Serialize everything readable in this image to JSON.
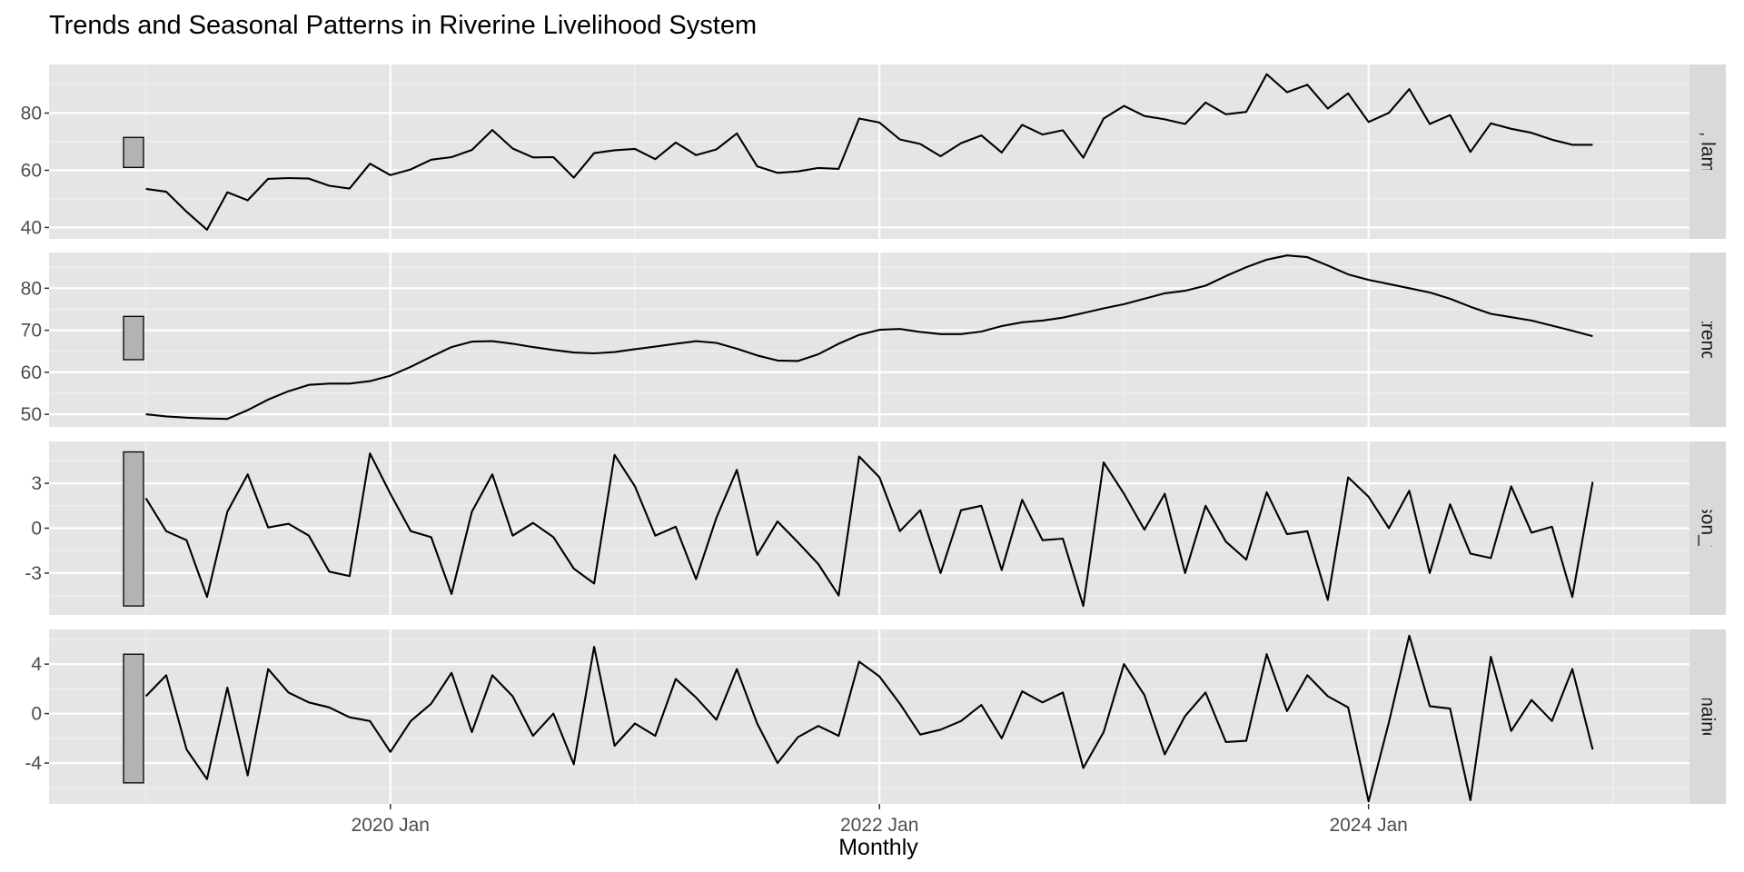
{
  "chart_data": {
    "type": "line",
    "title": "Trends and Seasonal Patterns in Riverine Livelihood System",
    "xlabel": "Monthly",
    "x_start": "2019 Jan",
    "x_end": "2024 Dec",
    "x_frequency": "monthly",
    "x_ticks": [
      "2020 Jan",
      "2022 Jan",
      "2024 Jan"
    ],
    "x_tick_months": [
      12,
      36,
      60
    ],
    "x_minor_tick_months": [
      0,
      24,
      48,
      72
    ],
    "x_range_months": [
      -4.75,
      75.75
    ],
    "grid": true,
    "panel_background": "#e5e5e5",
    "strip_background": "#d9d9d9",
    "line_color": "#000000",
    "scale_bar_fill": "#b3b3b3",
    "panels": [
      {
        "strip": "issions, lambda = l",
        "ylim": [
          36,
          97
        ],
        "yticks": [
          40,
          60,
          80
        ],
        "scale_bar": [
          61,
          71.5
        ],
        "values": [
          53.5,
          52.5,
          45.5,
          39.2,
          52.3,
          49.5,
          57,
          57.3,
          57.1,
          54.6,
          53.6,
          62.3,
          58.3,
          60.3,
          63.7,
          64.6,
          67.1,
          74.1,
          67.6,
          64.5,
          64.6,
          57.4,
          66,
          67,
          67.5,
          63.9,
          69.7,
          65.3,
          67.3,
          72.9,
          61.4,
          59.1,
          59.6,
          60.8,
          60.5,
          78.1,
          76.7,
          70.8,
          69.2,
          64.9,
          69.5,
          72.2,
          66.2,
          75.9,
          72.5,
          74,
          64.4,
          78.1,
          82.5,
          79,
          77.8,
          76.2,
          83.7,
          79.6,
          80.4,
          93.6,
          87.3,
          89.9,
          81.6,
          86.9,
          76.9,
          80.1,
          88.4,
          76.2,
          79.3,
          66.4,
          76.4,
          74.5,
          73.1,
          70.7,
          68.9,
          68.9
        ]
      },
      {
        "strip": "trend",
        "ylim": [
          47,
          88.5
        ],
        "yticks": [
          50,
          60,
          70,
          80
        ],
        "scale_bar": [
          63,
          73.3
        ],
        "values": [
          50,
          49.5,
          49.2,
          49,
          48.9,
          51,
          53.5,
          55.5,
          57,
          57.3,
          57.3,
          57.9,
          59.2,
          61.3,
          63.7,
          66,
          67.3,
          67.4,
          66.8,
          66,
          65.3,
          64.7,
          64.5,
          64.8,
          65.5,
          66.1,
          66.8,
          67.4,
          67,
          65.6,
          64,
          62.8,
          62.7,
          64.3,
          66.8,
          68.9,
          70.1,
          70.3,
          69.6,
          69.1,
          69.1,
          69.7,
          71,
          71.9,
          72.3,
          73,
          74.1,
          75.2,
          76.2,
          77.5,
          78.8,
          79.4,
          80.6,
          82.9,
          85,
          86.8,
          87.8,
          87.4,
          85.4,
          83.3,
          82,
          81,
          80,
          79,
          77.5,
          75.6,
          73.9,
          73.1,
          72.3,
          71.1,
          69.9,
          68.6
        ]
      },
      {
        "strip": "season_year",
        "ylim": [
          -5.8,
          5.8
        ],
        "yticks": [
          -3,
          0,
          3
        ],
        "yticklabels": [
          "-3",
          "0",
          "3"
        ],
        "scale_bar": [
          -5.2,
          5.1
        ],
        "values": [
          2,
          -0.2,
          -0.8,
          -4.6,
          1.1,
          3.6,
          0.05,
          0.3,
          -0.5,
          -2.9,
          -3.2,
          5,
          2.3,
          -0.2,
          -0.6,
          -4.4,
          1.1,
          3.6,
          -0.5,
          0.35,
          -0.6,
          -2.7,
          -3.7,
          4.9,
          2.8,
          -0.5,
          0.1,
          -3.4,
          0.7,
          3.9,
          -1.8,
          0.45,
          -0.95,
          -2.4,
          -4.5,
          4.8,
          3.4,
          -0.2,
          1.2,
          -3,
          1.2,
          1.5,
          -2.8,
          1.9,
          -0.8,
          -0.7,
          -5.2,
          4.4,
          2.3,
          -0.1,
          2.3,
          -3,
          1.5,
          -0.9,
          -2.1,
          2.4,
          -0.4,
          -0.2,
          -4.8,
          3.4,
          2.1,
          0,
          2.5,
          -3,
          1.6,
          -1.7,
          -2,
          2.8,
          -0.3,
          0.1,
          -4.6,
          3.1
        ]
      },
      {
        "strip": "remainder",
        "ylim": [
          -7.3,
          6.8
        ],
        "yticks": [
          -4,
          0,
          4
        ],
        "yticklabels": [
          "-4",
          "0",
          "4"
        ],
        "scale_bar": [
          -5.6,
          4.8
        ],
        "values": [
          1.4,
          3.1,
          -2.9,
          -5.3,
          2.1,
          -5,
          3.6,
          1.7,
          0.9,
          0.5,
          -0.3,
          -0.6,
          -3.1,
          -0.6,
          0.8,
          3.3,
          -1.5,
          3.1,
          1.4,
          -1.8,
          0,
          -4.1,
          5.4,
          -2.6,
          -0.8,
          -1.8,
          2.8,
          1.3,
          -0.5,
          3.6,
          -0.8,
          -4,
          -1.9,
          -1,
          -1.8,
          4.2,
          3,
          0.8,
          -1.7,
          -1.3,
          -0.6,
          0.7,
          -2,
          1.8,
          0.9,
          1.7,
          -4.4,
          -1.5,
          4,
          1.5,
          -3.3,
          -0.2,
          1.7,
          -2.3,
          -2.2,
          4.8,
          0.2,
          3.1,
          1.4,
          0.5,
          -7.1,
          -0.7,
          6.3,
          0.6,
          0.4,
          -7,
          4.6,
          -1.4,
          1.1,
          -0.6,
          3.6,
          -2.9
        ]
      }
    ]
  }
}
